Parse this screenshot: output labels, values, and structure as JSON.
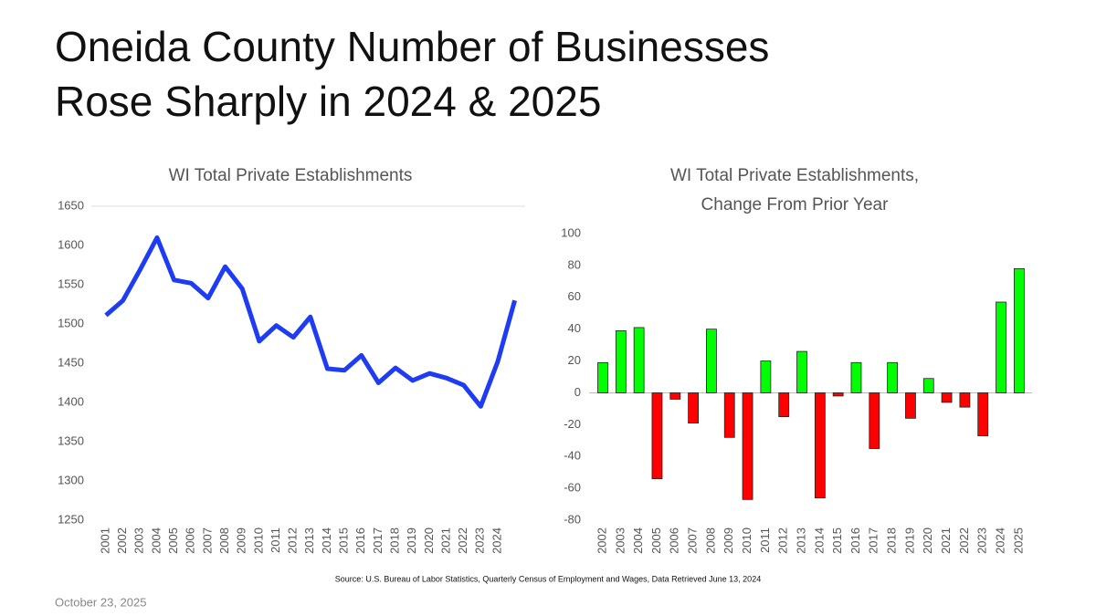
{
  "title_lines": [
    "Oneida County Number of Businesses",
    "Rose Sharply in 2024 & 2025"
  ],
  "chart_data": [
    {
      "type": "line",
      "title_lines": [
        "WI Total Private Establishments"
      ],
      "categories": [
        "2001",
        "2002",
        "2003",
        "2004",
        "2005",
        "2006",
        "2007",
        "2008",
        "2009",
        "2010",
        "2011",
        "2012",
        "2013",
        "2014",
        "2015",
        "2016",
        "2017",
        "2018",
        "2019",
        "2020",
        "2021",
        "2022",
        "2023",
        "2024",
        null
      ],
      "values": [
        1511,
        1530,
        1569,
        1610,
        1556,
        1552,
        1533,
        1573,
        1545,
        1478,
        1498,
        1483,
        1509,
        1443,
        1441,
        1460,
        1425,
        1444,
        1428,
        1437,
        1431,
        1422,
        1395,
        1452,
        1530
      ],
      "color": "#1f3cf5",
      "ylim": [
        1250,
        1650
      ],
      "yticks": [
        1250,
        1300,
        1350,
        1400,
        1450,
        1500,
        1550,
        1600,
        1650
      ],
      "grid": false
    },
    {
      "type": "bar",
      "title_lines": [
        "WI Total Private Establishments,",
        "Change From Prior Year"
      ],
      "categories": [
        "2002",
        "2003",
        "2004",
        "2005",
        "2006",
        "2007",
        "2008",
        "2009",
        "2010",
        "2011",
        "2012",
        "2013",
        "2014",
        "2015",
        "2016",
        "2017",
        "2018",
        "2019",
        "2020",
        "2021",
        "2022",
        "2023",
        "2024",
        "2025"
      ],
      "values": [
        19,
        39,
        41,
        -54,
        -4,
        -19,
        40,
        -28,
        -67,
        20,
        -15,
        26,
        -66,
        -2,
        19,
        -35,
        19,
        -16,
        9,
        -6,
        -9,
        -27,
        57,
        78
      ],
      "positive_color": "#00ff00",
      "negative_color": "#ff0000",
      "ylim": [
        -80,
        100
      ],
      "yticks": [
        -80,
        -60,
        -40,
        -20,
        0,
        20,
        40,
        60,
        80,
        100
      ],
      "grid": false
    }
  ],
  "source": "Source:  U.S. Bureau of Labor Statistics, Quarterly Census of Employment and Wages, Data Retrieved June 13, 2024",
  "date": "October 23, 2025"
}
